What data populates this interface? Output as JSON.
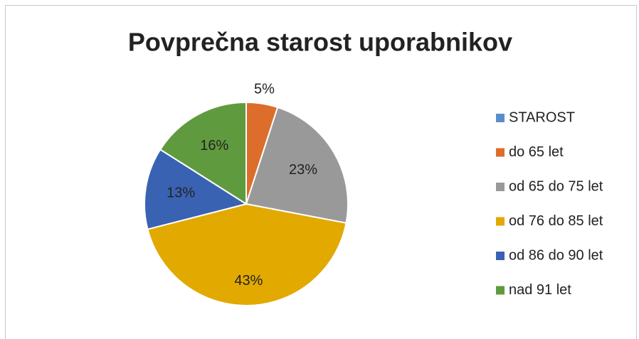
{
  "chart_data": {
    "type": "pie",
    "title": "Povprečna starost uporabnikov",
    "categories": [
      "STAROST",
      "do 65 let",
      "od 65 do 75 let",
      "od 76 do 85 let",
      "od 86 do 90 let",
      "nad 91 let"
    ],
    "values": [
      0,
      5,
      23,
      43,
      13,
      16
    ],
    "value_labels": [
      null,
      "5%",
      "23%",
      "43%",
      "13%",
      "16%"
    ],
    "colors": [
      "#5b8ec9",
      "#dd6d2b",
      "#999999",
      "#e2a900",
      "#3a62b3",
      "#5f9b3e"
    ],
    "legend": "right"
  }
}
